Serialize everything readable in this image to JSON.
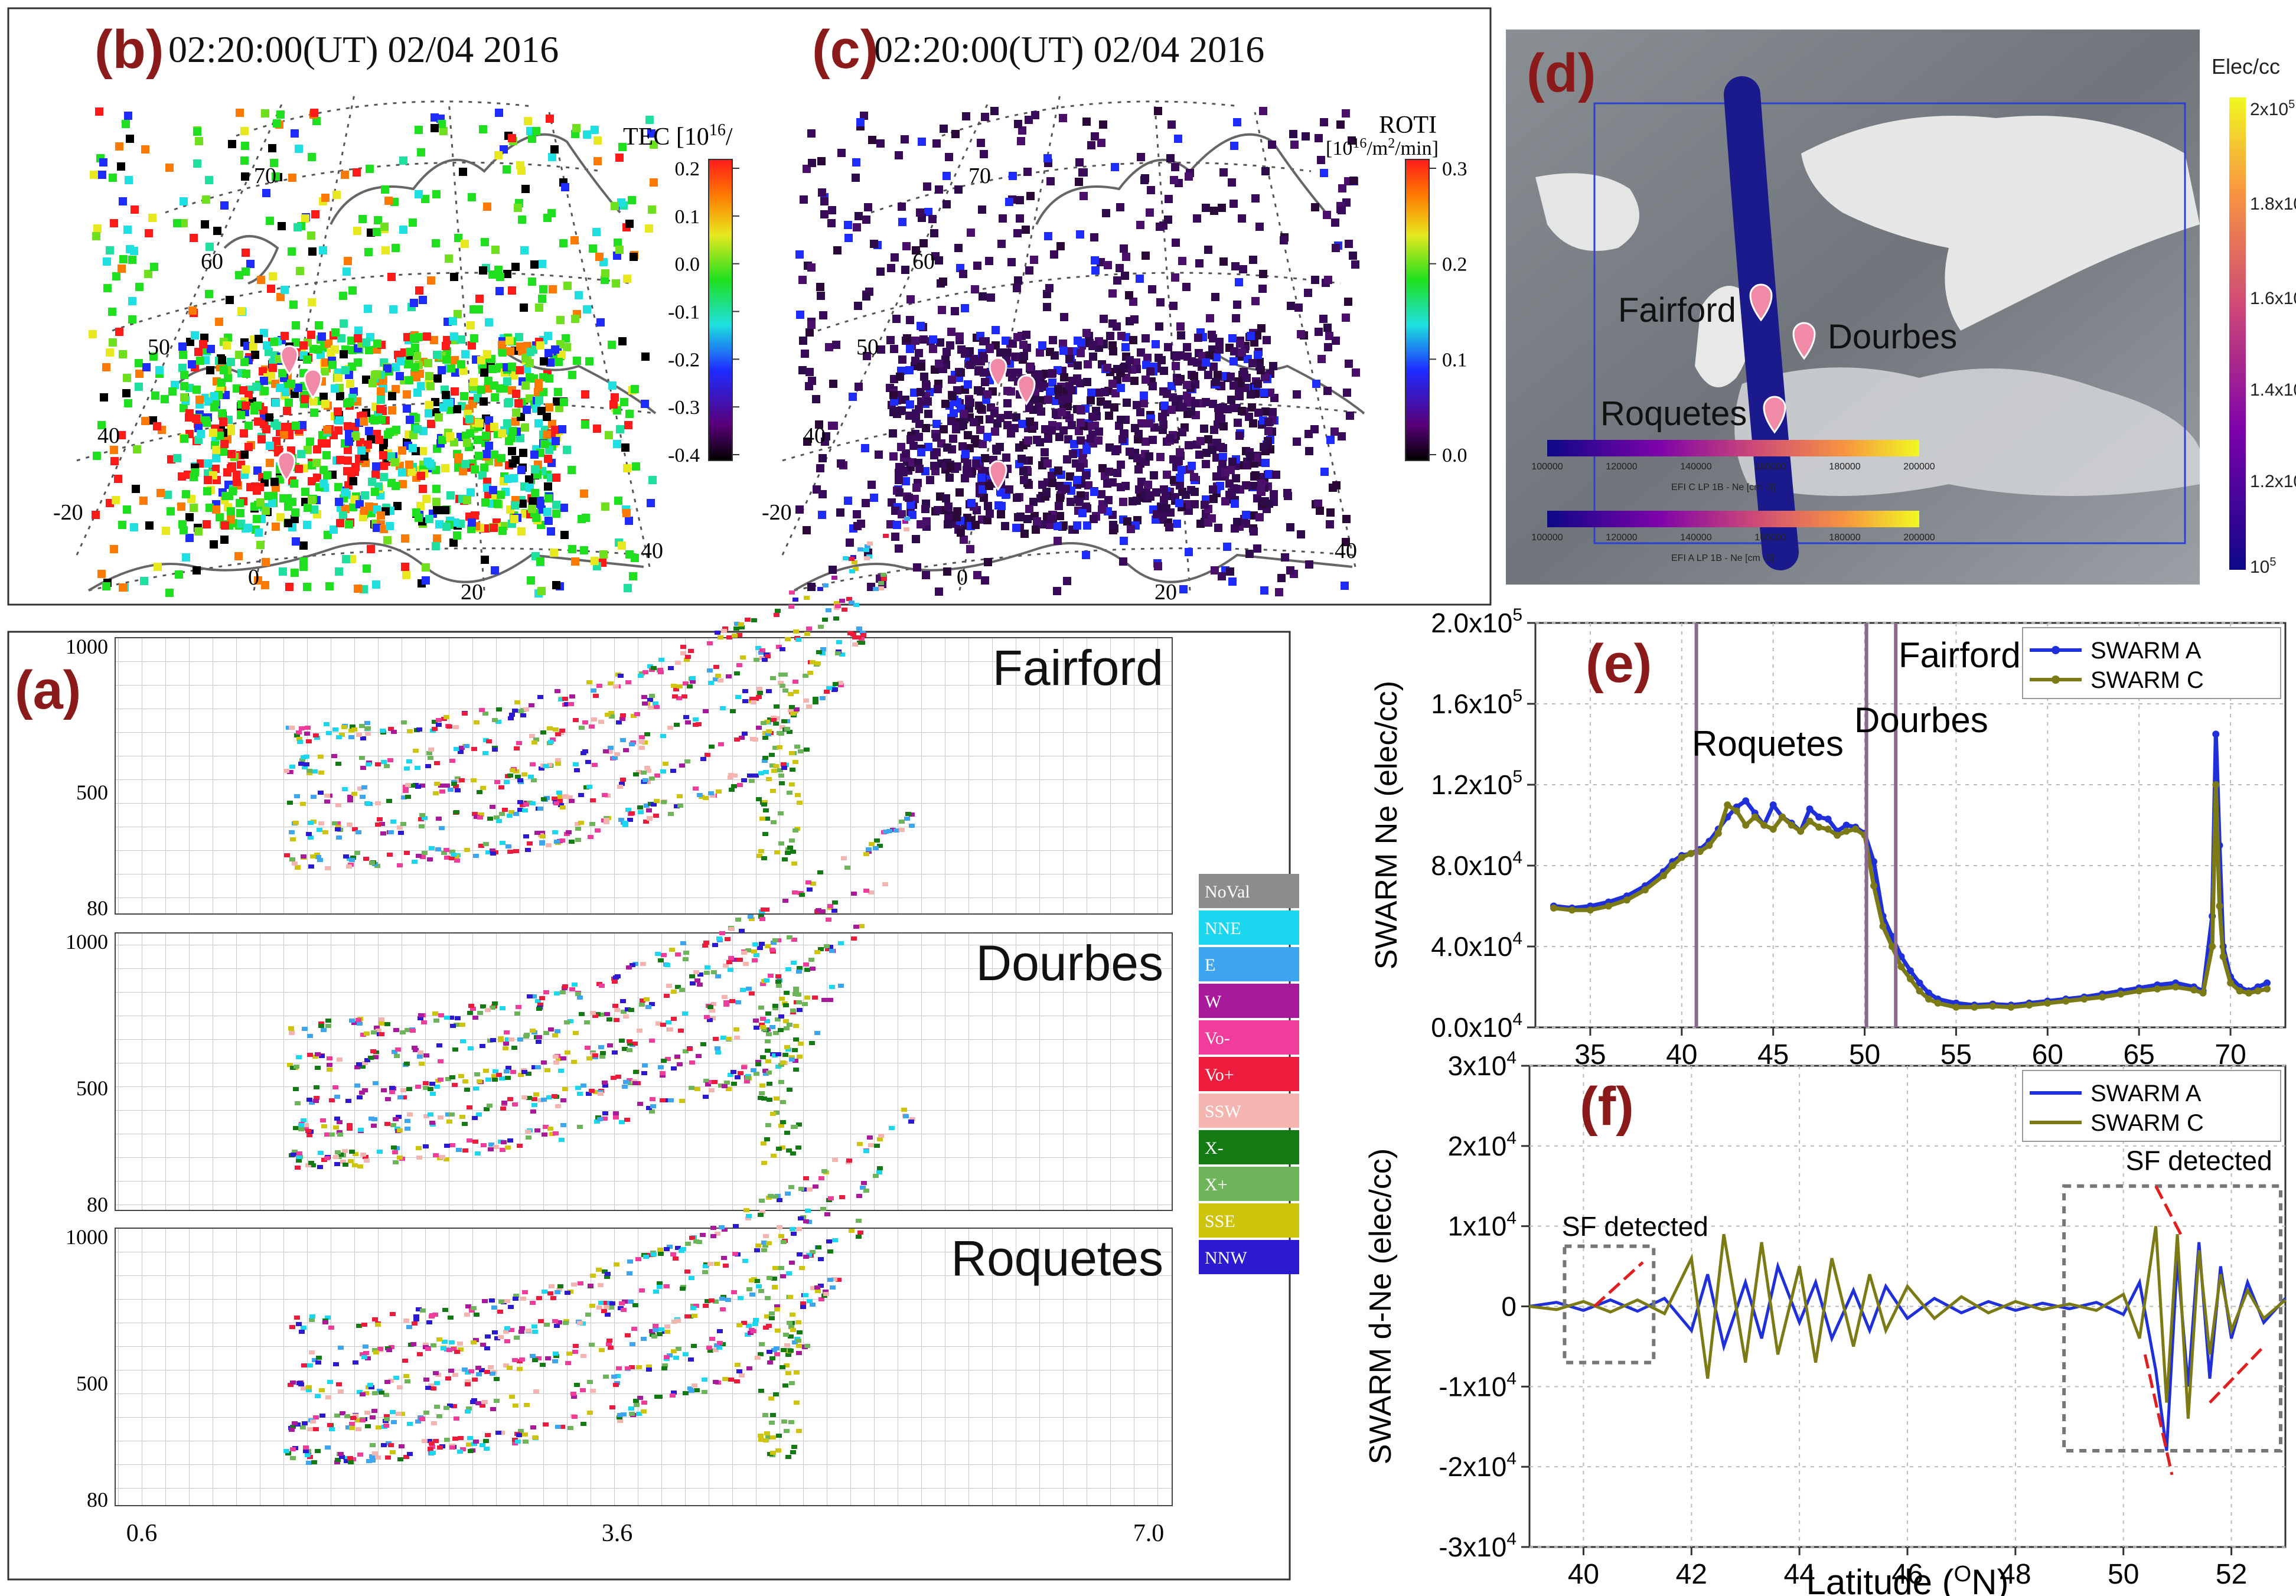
{
  "colors": {
    "panel_label": "#8b1a1a",
    "swarm_a": "#1f2fd9",
    "swarm_c": "#7b7a14",
    "station_marker": "#f08aa6",
    "track": "#1a1a8c"
  },
  "panel_b": {
    "label": "(b)",
    "title": "02:20:00(UT)  02/04 2016",
    "colorbar_title": "TEC [10",
    "colorbar_title_sup": "16",
    "colorbar_title_end": "/",
    "colorbar_ticks": [
      "0.2",
      "0.1",
      "0.0",
      "-0.1",
      "-0.2",
      "-0.3",
      "-0.4"
    ],
    "lat_labels": [
      "70",
      "60",
      "50",
      "40"
    ],
    "lon_labels": [
      "-20",
      "0",
      "20",
      "40"
    ]
  },
  "panel_c": {
    "label": "(c)",
    "title": "02:20:00(UT)  02/04 2016",
    "colorbar_title": "ROTI",
    "colorbar_unit": "[10",
    "colorbar_unit_sup": "16",
    "colorbar_unit_end": "/m",
    "colorbar_unit_sup2": "2",
    "colorbar_unit_end2": "/min]",
    "colorbar_ticks": [
      "0.3",
      "0.2",
      "0.1",
      "0.0"
    ],
    "lat_labels": [
      "70",
      "60",
      "50",
      "40"
    ],
    "lon_labels": [
      "-20",
      "0",
      "20",
      "40"
    ]
  },
  "panel_d": {
    "label": "(d)",
    "colorbar_title": "Elec/cc",
    "colorbar_ticks": [
      "2x10",
      "1.8x10",
      "1.6x10",
      "1.4x10",
      "1.2x10",
      "10"
    ],
    "colorbar_tick_sup": "5",
    "stations": [
      "Fairford",
      "Dourbes",
      "Roquetes"
    ],
    "bar1_ticks": [
      "100000",
      "120000",
      "140000",
      "160000",
      "180000",
      "200000"
    ],
    "bar1_title": "EFI C LP 1B - Ne [cm -3]",
    "bar2_ticks": [
      "100000",
      "120000",
      "140000",
      "160000",
      "180000",
      "200000"
    ],
    "bar2_title": "EFI A LP 1B - Ne [cm -3]"
  },
  "panel_a": {
    "label": "(a)",
    "stations": [
      "Fairford",
      "Dourbes",
      "Roquetes"
    ],
    "y_ticks": [
      "1000",
      "500",
      "80"
    ],
    "x_ticks": [
      "0.6",
      "3.6",
      "7.0"
    ],
    "legend": [
      {
        "name": "NoVal",
        "color": "#8c8c8c"
      },
      {
        "name": "NNE",
        "color": "#1ad6ee"
      },
      {
        "name": "E",
        "color": "#3ea6f0"
      },
      {
        "name": "W",
        "color": "#a8199b"
      },
      {
        "name": "Vo-",
        "color": "#f03c9a"
      },
      {
        "name": "Vo+",
        "color": "#ee1c3c"
      },
      {
        "name": "SSW",
        "color": "#f4b4b0"
      },
      {
        "name": "X-",
        "color": "#147a14"
      },
      {
        "name": "X+",
        "color": "#6eb45a"
      },
      {
        "name": "SSE",
        "color": "#cfc40c"
      },
      {
        "name": "NNW",
        "color": "#2c1ad0"
      }
    ]
  },
  "chart_data": [
    {
      "id": "e",
      "type": "line",
      "label": "(e)",
      "title": "",
      "xlabel": "",
      "ylabel": "SWARM Ne (elec/cc)",
      "xlim": [
        32,
        73
      ],
      "ylim": [
        0,
        200000
      ],
      "x_ticks": [
        "35",
        "40",
        "45",
        "50",
        "55",
        "60",
        "65",
        "70"
      ],
      "y_ticks": [
        "0.0x10",
        "4.0x10",
        "8.0x10",
        "1.2x10",
        "1.6x10",
        "2.0x10"
      ],
      "y_tick_sup": [
        "4",
        "4",
        "4",
        "5",
        "5",
        "5"
      ],
      "annotations": [
        "Roquetes",
        "Dourbes",
        "Fairford"
      ],
      "vlines": [
        40.8,
        50.1,
        51.7
      ],
      "legend": [
        "SWARM A",
        "SWARM C"
      ],
      "series": [
        {
          "name": "SWARM A",
          "x": [
            33,
            34,
            35,
            36,
            37,
            38,
            39,
            39.5,
            40,
            40.5,
            41,
            41.5,
            42,
            42.5,
            43,
            43.5,
            44,
            44.5,
            45,
            45.5,
            46,
            46.5,
            47,
            47.5,
            48,
            48.5,
            49,
            49.5,
            50,
            50.5,
            51,
            51.5,
            52,
            52.5,
            53,
            53.5,
            54,
            55,
            56,
            57,
            58,
            59,
            60,
            61,
            62,
            63,
            64,
            65,
            66,
            67,
            68,
            68.5,
            69,
            69.2,
            69.4,
            69.6,
            70,
            70.5,
            71,
            71.5,
            72
          ],
          "values": [
            60000,
            59000,
            60000,
            62000,
            65000,
            70000,
            77000,
            82000,
            85000,
            86000,
            88000,
            92000,
            98000,
            104000,
            109000,
            112000,
            106000,
            100000,
            110000,
            104000,
            101000,
            97000,
            108000,
            104000,
            103000,
            97000,
            100000,
            99000,
            96000,
            82000,
            55000,
            45000,
            35000,
            28000,
            22000,
            17000,
            14000,
            12000,
            11000,
            11500,
            11000,
            12000,
            13000,
            14000,
            15000,
            16500,
            18000,
            19500,
            21000,
            22000,
            20000,
            18000,
            55000,
            145000,
            90000,
            40000,
            25000,
            20000,
            18000,
            20000,
            22000
          ]
        },
        {
          "name": "SWARM C",
          "x": [
            33,
            34,
            35,
            36,
            37,
            38,
            39,
            39.5,
            40,
            40.5,
            41,
            41.5,
            42,
            42.5,
            43,
            43.5,
            44,
            44.5,
            45,
            45.5,
            46,
            46.5,
            47,
            47.5,
            48,
            48.5,
            49,
            49.5,
            50,
            50.5,
            51,
            51.5,
            52,
            52.5,
            53,
            53.5,
            54,
            55,
            56,
            57,
            58,
            59,
            60,
            61,
            62,
            63,
            64,
            65,
            66,
            67,
            68,
            68.5,
            69,
            69.2,
            69.4,
            69.6,
            70,
            70.5,
            71,
            71.5,
            72
          ],
          "values": [
            59000,
            58000,
            58000,
            60000,
            63000,
            68000,
            75000,
            80000,
            84000,
            86000,
            87000,
            90000,
            96000,
            110000,
            107000,
            100000,
            104000,
            100000,
            98000,
            104000,
            100000,
            97000,
            102000,
            99000,
            98000,
            95000,
            97000,
            98000,
            95000,
            70000,
            50000,
            40000,
            30000,
            24000,
            18000,
            14000,
            12000,
            10000,
            10000,
            10500,
            10000,
            11000,
            12000,
            13000,
            14000,
            15000,
            16500,
            18000,
            19000,
            20000,
            18500,
            17000,
            40000,
            120000,
            60000,
            35000,
            22000,
            18000,
            17000,
            18000,
            19000
          ]
        }
      ]
    },
    {
      "id": "f",
      "type": "line",
      "label": "(f)",
      "title": "",
      "xlabel": "Latitude (",
      "xlabel_sup": "O",
      "xlabel_end": "N)",
      "ylabel": "SWARM d-Ne (elec/cc)",
      "xlim": [
        39,
        53
      ],
      "ylim": [
        -30000,
        30000
      ],
      "x_ticks": [
        "40",
        "42",
        "44",
        "46",
        "48",
        "50",
        "52"
      ],
      "y_ticks": [
        "3x10",
        "2x10",
        "1x10",
        "0",
        "-1x10",
        "-2x10",
        "-3x10"
      ],
      "y_tick_sup": "4",
      "annotations": [
        "SF detected",
        "SF detected"
      ],
      "legend": [
        "SWARM A",
        "SWARM C"
      ],
      "series": [
        {
          "name": "SWARM A",
          "x": [
            39,
            39.5,
            40,
            40.5,
            41,
            41.5,
            42,
            42.3,
            42.6,
            43,
            43.3,
            43.6,
            44,
            44.3,
            44.6,
            45,
            45.3,
            45.6,
            46,
            46.5,
            47,
            47.5,
            48,
            48.5,
            49,
            49.5,
            50,
            50.3,
            50.6,
            50.8,
            51,
            51.2,
            51.4,
            51.6,
            51.8,
            52,
            52.3,
            52.6,
            53
          ],
          "values": [
            0,
            500,
            -500,
            800,
            -600,
            1000,
            -3000,
            4000,
            -5000,
            3000,
            -4000,
            5000,
            -2000,
            3000,
            -4000,
            2000,
            -3000,
            2500,
            -1500,
            1000,
            -800,
            600,
            -500,
            400,
            -300,
            500,
            -1000,
            3000,
            -8000,
            -18000,
            6000,
            -10000,
            8000,
            -9000,
            5000,
            -4000,
            3000,
            -2000,
            1000
          ]
        },
        {
          "name": "SWARM C",
          "x": [
            39,
            39.5,
            40,
            40.5,
            41,
            41.5,
            42,
            42.3,
            42.6,
            43,
            43.3,
            43.6,
            44,
            44.3,
            44.6,
            45,
            45.3,
            45.6,
            46,
            46.5,
            47,
            47.5,
            48,
            48.5,
            49,
            49.5,
            50,
            50.3,
            50.6,
            50.8,
            51,
            51.2,
            51.4,
            51.6,
            51.8,
            52,
            52.3,
            52.6,
            53
          ],
          "values": [
            0,
            -400,
            600,
            -700,
            800,
            -900,
            6000,
            -9000,
            9000,
            -7000,
            8000,
            -6000,
            5000,
            -7000,
            6000,
            -5000,
            4000,
            -3000,
            2500,
            -1500,
            1200,
            -800,
            600,
            -400,
            300,
            -500,
            1500,
            -4000,
            10000,
            -12000,
            9000,
            -14000,
            7000,
            -6000,
            4000,
            -3000,
            2000,
            -1500,
            800
          ]
        }
      ]
    }
  ]
}
